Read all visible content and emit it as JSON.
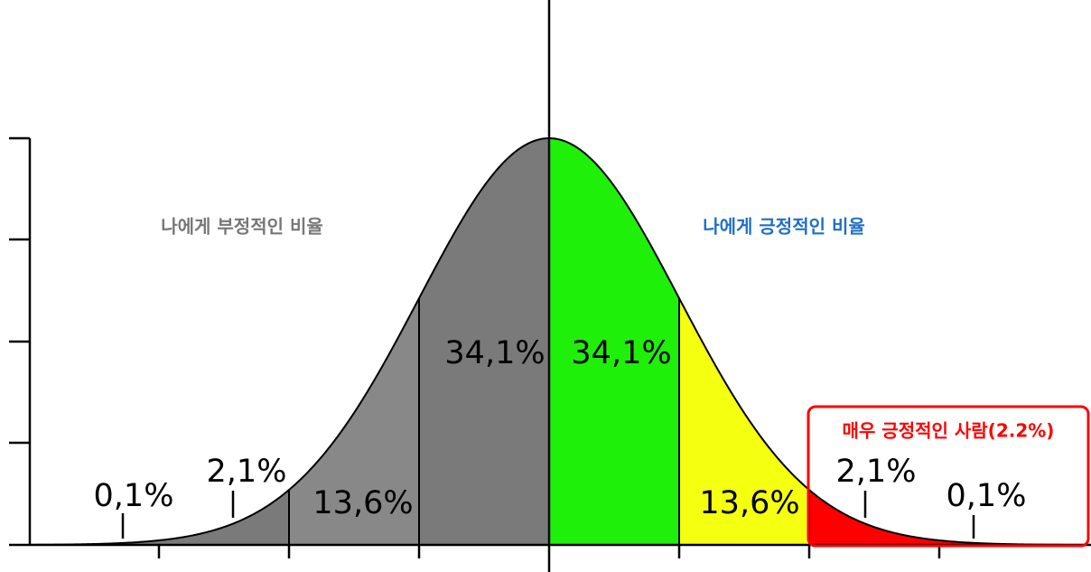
{
  "left_caption": "나에게 부정적인 비율",
  "right_caption": "나에게 긍정적인 비율",
  "highlight_caption": "매우 긍정적인 사람(2.2%)",
  "segments": [
    {
      "label": "0,1%"
    },
    {
      "label": "2,1%"
    },
    {
      "label": "13,6%"
    },
    {
      "label": "34,1%"
    },
    {
      "label": "34,1%"
    },
    {
      "label": "13,6%"
    },
    {
      "label": "2,1%"
    },
    {
      "label": "0,1%"
    }
  ]
}
